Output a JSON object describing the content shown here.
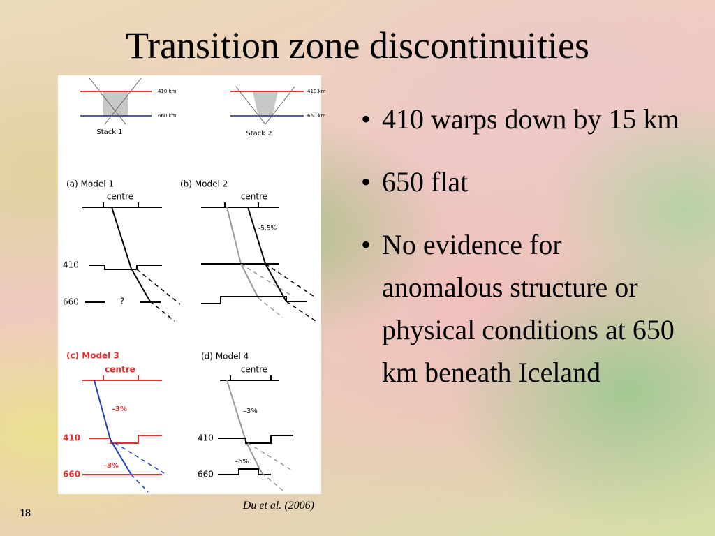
{
  "title": "Transition zone discontinuities",
  "bullets": [
    "410 warps down by 15 km",
    "650 flat",
    "No evidence for anomalous structure or physical conditions at 650 km beneath Iceland"
  ],
  "citation": "Du et al. (2006)",
  "page_number": "18",
  "figure": {
    "stacks": [
      {
        "label": "Stack 1",
        "top": "410 km",
        "bottom": "660 km"
      },
      {
        "label": "Stack 2",
        "top": "410 km",
        "bottom": "660 km"
      }
    ],
    "models": [
      {
        "label": "(a) Model 1",
        "centre": "centre",
        "d410": "410",
        "d660": "660",
        "notes": [
          "?"
        ]
      },
      {
        "label": "(b) Model 2",
        "centre": "centre",
        "notes": [
          "-5.5%"
        ]
      },
      {
        "label": "(c) Model 3",
        "centre": "centre",
        "d410": "410",
        "d660": "660",
        "notes": [
          "–3%",
          "–3%"
        ]
      },
      {
        "label": "(d) Model 4",
        "centre": "centre",
        "d410": "410",
        "d660": "660",
        "notes": [
          "–3%",
          "–6%"
        ]
      }
    ]
  }
}
